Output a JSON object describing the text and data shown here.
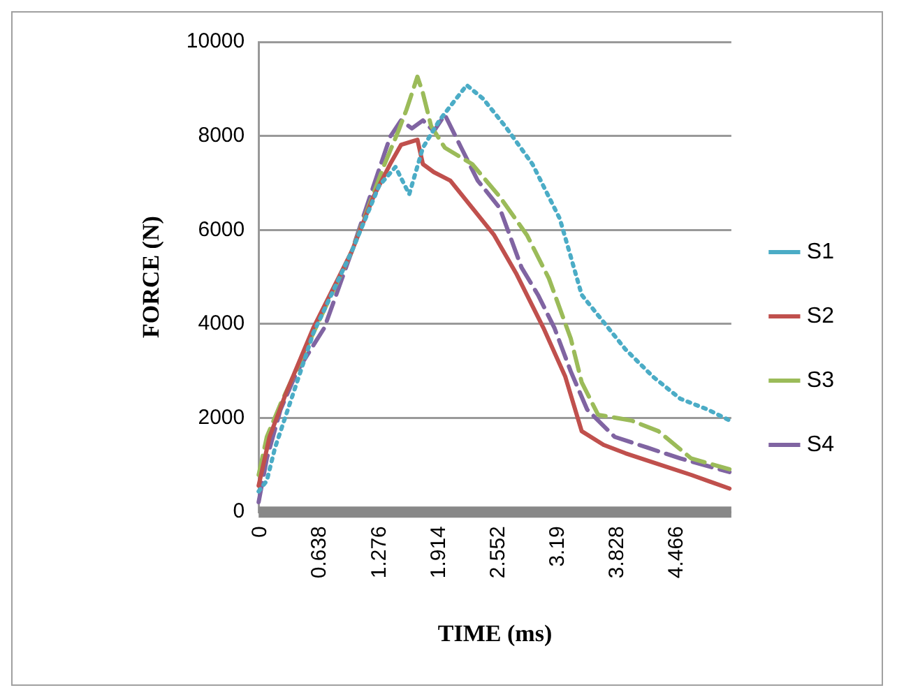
{
  "chart_data": {
    "type": "line",
    "xlabel": "TIME (ms)",
    "ylabel": "FORCE (N)",
    "xlim": [
      0,
      5.07
    ],
    "xticks": [
      0,
      0.638,
      1.276,
      1.914,
      2.552,
      3.19,
      3.828,
      4.466
    ],
    "ylim": [
      0,
      10000
    ],
    "yticks": [
      0,
      2000,
      4000,
      6000,
      8000,
      10000
    ],
    "grid": "y",
    "legend": "right",
    "marker": "none",
    "series": [
      {
        "name": "S1",
        "color": "#4bacc6",
        "line_style": "dotted",
        "x": [
          0,
          0.088,
          0.176,
          0.411,
          0.587,
          1.0,
          1.292,
          1.468,
          1.615,
          1.762,
          1.938,
          2.232,
          2.408,
          2.643,
          2.937,
          3.23,
          3.348,
          3.465,
          3.7,
          3.935,
          4.229,
          4.523,
          4.817,
          5.05
        ],
        "values": [
          440,
          670,
          1370,
          2760,
          3810,
          5550,
          6940,
          7340,
          6760,
          7750,
          8330,
          9080,
          8790,
          8210,
          7400,
          6240,
          5430,
          4620,
          4040,
          3460,
          2880,
          2410,
          2180,
          1950
        ]
      },
      {
        "name": "S2",
        "color": "#c0504d",
        "line_style": "solid",
        "x": [
          0,
          0.117,
          0.294,
          0.587,
          1.0,
          1.233,
          1.41,
          1.527,
          1.703,
          1.762,
          1.879,
          2.056,
          2.291,
          2.526,
          2.761,
          3.054,
          3.289,
          3.465,
          3.7,
          3.935,
          4.288,
          4.64,
          5.05
        ],
        "values": [
          560,
          1600,
          2530,
          3920,
          5550,
          6710,
          7400,
          7810,
          7920,
          7400,
          7230,
          7050,
          6470,
          5890,
          5080,
          3920,
          2880,
          1720,
          1430,
          1250,
          1020,
          790,
          500
        ]
      },
      {
        "name": "S3",
        "color": "#9bbb59",
        "line_style": "dashed",
        "x": [
          0,
          0.088,
          0.235,
          0.587,
          1.0,
          1.351,
          1.498,
          1.586,
          1.703,
          1.762,
          1.85,
          1.997,
          2.291,
          2.585,
          2.878,
          3.113,
          3.348,
          3.465,
          3.641,
          3.994,
          4.288,
          4.64,
          5.05
        ],
        "values": [
          790,
          1600,
          2300,
          3810,
          5550,
          7400,
          8100,
          8560,
          9260,
          8910,
          8210,
          7750,
          7400,
          6710,
          5890,
          4970,
          3690,
          2760,
          2070,
          1950,
          1720,
          1140,
          910
        ]
      },
      {
        "name": "S4",
        "color": "#8064a2",
        "line_style": "dashed",
        "x": [
          0,
          0.088,
          0.235,
          0.411,
          0.705,
          1.0,
          1.233,
          1.41,
          1.527,
          1.644,
          1.762,
          1.879,
          1.997,
          2.173,
          2.35,
          2.585,
          2.82,
          2.996,
          3.172,
          3.348,
          3.524,
          3.818,
          4.17,
          4.523,
          5.05
        ],
        "values": [
          210,
          1140,
          2180,
          2990,
          3920,
          5550,
          6940,
          7980,
          8330,
          8160,
          8330,
          8100,
          8450,
          7750,
          7050,
          6470,
          5200,
          4620,
          3920,
          2990,
          2180,
          1600,
          1370,
          1140,
          850
        ]
      }
    ]
  }
}
